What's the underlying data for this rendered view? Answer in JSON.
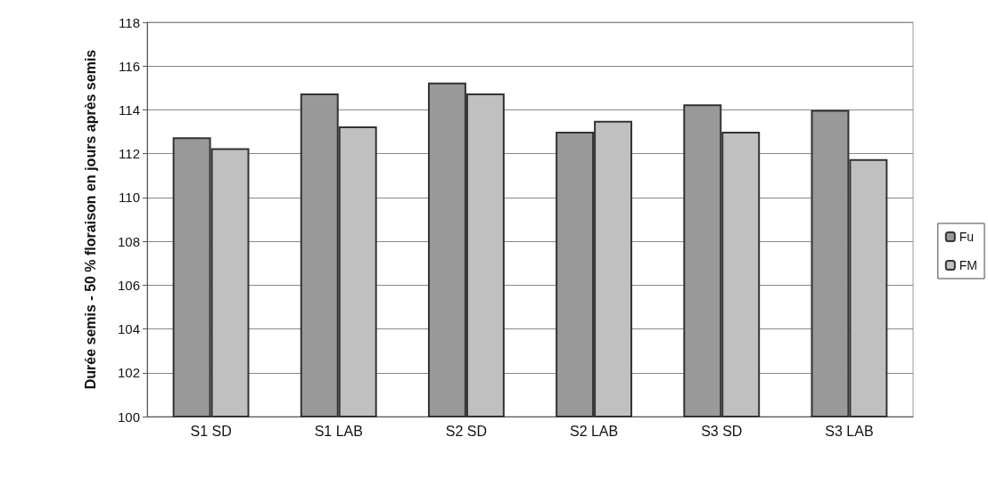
{
  "chart_data": {
    "type": "bar",
    "ylabel": "Durée semis - 50 % floraison en jours après semis",
    "categories": [
      "S1 SD",
      "S1 LAB",
      "S2 SD",
      "S2 LAB",
      "S3 SD",
      "S3 LAB"
    ],
    "series": [
      {
        "name": "Fu",
        "color": "#999999",
        "values": [
          112.75,
          114.75,
          115.25,
          113,
          114.25,
          114
        ]
      },
      {
        "name": "FM",
        "color": "#c0c0c0",
        "values": [
          112.25,
          113.25,
          114.75,
          113.5,
          113,
          111.75
        ]
      }
    ],
    "ylim": [
      100,
      118
    ],
    "yticks": [
      100,
      102,
      104,
      106,
      108,
      110,
      112,
      114,
      116,
      118
    ],
    "grid": "y",
    "legend": "right"
  }
}
